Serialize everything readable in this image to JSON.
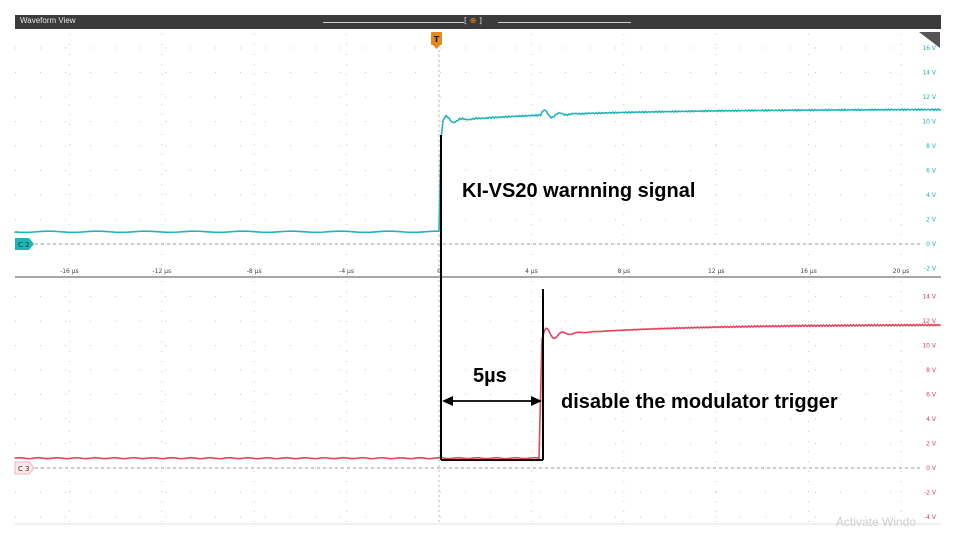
{
  "window": {
    "title": "Waveform View"
  },
  "colors": {
    "ch2": "#1fb5b5",
    "ch3": "#e8415a",
    "trigger": "#e8891b",
    "titlebar": "#3b3b3b"
  },
  "trigger_marker": {
    "label": "T",
    "icon": "trigger-marker-icon"
  },
  "ch2": {
    "label": "C 2",
    "yticks": [
      "16 V",
      "14 V",
      "12 V",
      "10 V",
      "8 V",
      "6 V",
      "4 V",
      "2 V",
      "0 V",
      "-2 V"
    ],
    "ymin": -2,
    "ymax": 16
  },
  "ch3": {
    "label": "C 3",
    "yticks": [
      "14 V",
      "12 V",
      "10 V",
      "8 V",
      "6 V",
      "4 V",
      "2 V",
      "0 V",
      "-2 V",
      "-4 V"
    ],
    "ymin": -4,
    "ymax": 15
  },
  "time_axis": {
    "ticks": [
      "-16 µs",
      "-12 µs",
      "-8 µs",
      "-4 µs",
      "0",
      "4 µs",
      "8 µs",
      "12 µs",
      "16 µs",
      "20 µs"
    ],
    "xmin": -19,
    "xmax": 21.5
  },
  "annotations": {
    "signal_label": "KI-VS20 warnning signal",
    "delay_label": "5µs",
    "trigger_label": "disable the modulator trigger"
  },
  "watermark": "Activate Windo"
}
